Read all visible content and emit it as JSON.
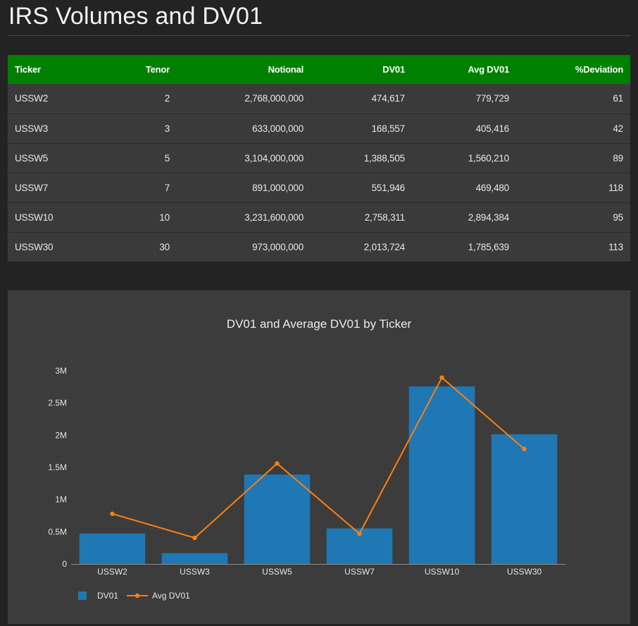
{
  "page": {
    "title": "IRS Volumes and DV01"
  },
  "table": {
    "headers": [
      "Ticker",
      "Tenor",
      "Notional",
      "DV01",
      "Avg DV01",
      "%Deviation"
    ],
    "rows": [
      [
        "USSW2",
        "2",
        "2,768,000,000",
        "474,617",
        "779,729",
        "61"
      ],
      [
        "USSW3",
        "3",
        "633,000,000",
        "168,557",
        "405,416",
        "42"
      ],
      [
        "USSW5",
        "5",
        "3,104,000,000",
        "1,388,505",
        "1,560,210",
        "89"
      ],
      [
        "USSW7",
        "7",
        "891,000,000",
        "551,946",
        "469,480",
        "118"
      ],
      [
        "USSW10",
        "10",
        "3,231,600,000",
        "2,758,311",
        "2,894,384",
        "95"
      ],
      [
        "USSW30",
        "30",
        "973,000,000",
        "2,013,724",
        "1,785,639",
        "113"
      ]
    ],
    "header_color": "#008000"
  },
  "chart_data": {
    "type": "bar",
    "title": "DV01 and Average DV01 by Ticker",
    "categories": [
      "USSW2",
      "USSW3",
      "USSW5",
      "USSW7",
      "USSW10",
      "USSW30"
    ],
    "series": [
      {
        "name": "DV01",
        "type": "bar",
        "color": "#1f77b4",
        "values": [
          474617,
          168557,
          1388505,
          551946,
          2758311,
          2013724
        ]
      },
      {
        "name": "Avg DV01",
        "type": "line",
        "color": "#ff7f0e",
        "values": [
          779729,
          405416,
          1560210,
          469480,
          2894384,
          1785639
        ]
      }
    ],
    "ylim": [
      0,
      3000000
    ],
    "yticks": [
      0,
      500000,
      1000000,
      1500000,
      2000000,
      2500000,
      3000000
    ],
    "ytick_labels": [
      "0",
      "0.5M",
      "1M",
      "1.5M",
      "2M",
      "2.5M",
      "3M"
    ],
    "legend_position": "bottom-left",
    "grid": false
  }
}
